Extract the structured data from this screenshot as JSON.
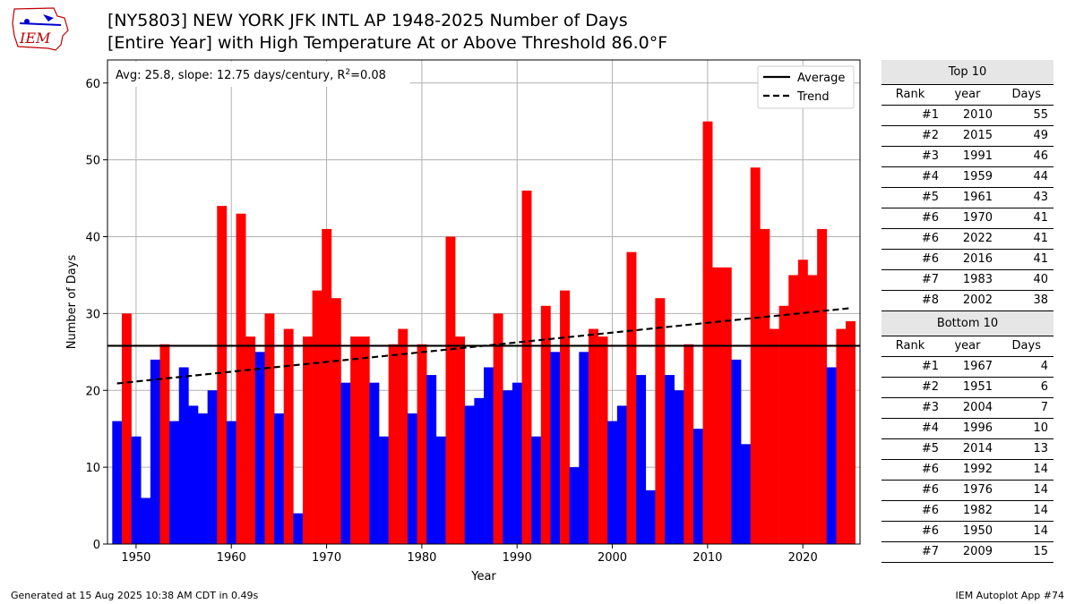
{
  "title_line1": "[NY5803] NEW YORK JFK INTL AP 1948-2025 Number of Days",
  "title_line2": "[Entire Year] with High Temperature At or Above Threshold 86.0°F",
  "logo_text": "IEM",
  "footer_left": "Generated at 15 Aug 2025 10:38 AM CDT in 0.49s",
  "footer_right": "IEM Autoplot App #74",
  "chart_data": {
    "type": "bar",
    "xlabel": "Year",
    "ylabel": "Number of Days",
    "xlim": [
      1947,
      2026
    ],
    "ylim": [
      0,
      63
    ],
    "xticks": [
      1950,
      1960,
      1970,
      1980,
      1990,
      2000,
      2010,
      2020
    ],
    "yticks": [
      0,
      10,
      20,
      30,
      40,
      50,
      60
    ],
    "grid": true,
    "average": 25.8,
    "trend": {
      "start_year": 1948,
      "start_value": 20.9,
      "end_year": 2025,
      "end_value": 30.7
    },
    "stats_text": "Avg: 25.8, slope: 12.75 days/century, R²=0.08",
    "stats_prefix": "Avg: 25.8, slope: 12.75 days/century, R",
    "stats_sup": "2",
    "stats_suffix": "=0.08",
    "legend": {
      "position": "top-right",
      "entries": [
        "Average",
        "Trend"
      ]
    },
    "colors": {
      "above": "#ff0000",
      "below": "#0000ff",
      "average": "#000000",
      "trend": "#000000"
    },
    "years": [
      1948,
      1949,
      1950,
      1951,
      1952,
      1953,
      1954,
      1955,
      1956,
      1957,
      1958,
      1959,
      1960,
      1961,
      1962,
      1963,
      1964,
      1965,
      1966,
      1967,
      1968,
      1969,
      1970,
      1971,
      1972,
      1973,
      1974,
      1975,
      1976,
      1977,
      1978,
      1979,
      1980,
      1981,
      1982,
      1983,
      1984,
      1985,
      1986,
      1987,
      1988,
      1989,
      1990,
      1991,
      1992,
      1993,
      1994,
      1995,
      1996,
      1997,
      1998,
      1999,
      2000,
      2001,
      2002,
      2003,
      2004,
      2005,
      2006,
      2007,
      2008,
      2009,
      2010,
      2011,
      2012,
      2013,
      2014,
      2015,
      2016,
      2017,
      2018,
      2019,
      2020,
      2021,
      2022,
      2023,
      2024,
      2025
    ],
    "values": [
      16,
      30,
      14,
      6,
      24,
      26,
      16,
      23,
      18,
      17,
      20,
      44,
      16,
      43,
      27,
      25,
      30,
      17,
      28,
      4,
      27,
      33,
      41,
      32,
      21,
      27,
      27,
      21,
      14,
      26,
      28,
      17,
      26,
      22,
      14,
      40,
      27,
      18,
      19,
      23,
      30,
      20,
      21,
      46,
      14,
      31,
      25,
      33,
      10,
      25,
      28,
      27,
      16,
      18,
      38,
      22,
      7,
      32,
      22,
      20,
      26,
      15,
      55,
      36,
      36,
      24,
      13,
      49,
      41,
      28,
      31,
      35,
      37,
      35,
      41,
      23,
      28,
      29
    ]
  },
  "top10": {
    "title": "Top 10",
    "headers": [
      "Rank",
      "year",
      "Days"
    ],
    "rows": [
      [
        "#1",
        "2010",
        "55"
      ],
      [
        "#2",
        "2015",
        "49"
      ],
      [
        "#3",
        "1991",
        "46"
      ],
      [
        "#4",
        "1959",
        "44"
      ],
      [
        "#5",
        "1961",
        "43"
      ],
      [
        "#6",
        "1970",
        "41"
      ],
      [
        "#6",
        "2022",
        "41"
      ],
      [
        "#6",
        "2016",
        "41"
      ],
      [
        "#7",
        "1983",
        "40"
      ],
      [
        "#8",
        "2002",
        "38"
      ]
    ]
  },
  "bottom10": {
    "title": "Bottom 10",
    "headers": [
      "Rank",
      "year",
      "Days"
    ],
    "rows": [
      [
        "#1",
        "1967",
        "4"
      ],
      [
        "#2",
        "1951",
        "6"
      ],
      [
        "#3",
        "2004",
        "7"
      ],
      [
        "#4",
        "1996",
        "10"
      ],
      [
        "#5",
        "2014",
        "13"
      ],
      [
        "#6",
        "1992",
        "14"
      ],
      [
        "#6",
        "1976",
        "14"
      ],
      [
        "#6",
        "1982",
        "14"
      ],
      [
        "#6",
        "1950",
        "14"
      ],
      [
        "#7",
        "2009",
        "15"
      ]
    ]
  }
}
